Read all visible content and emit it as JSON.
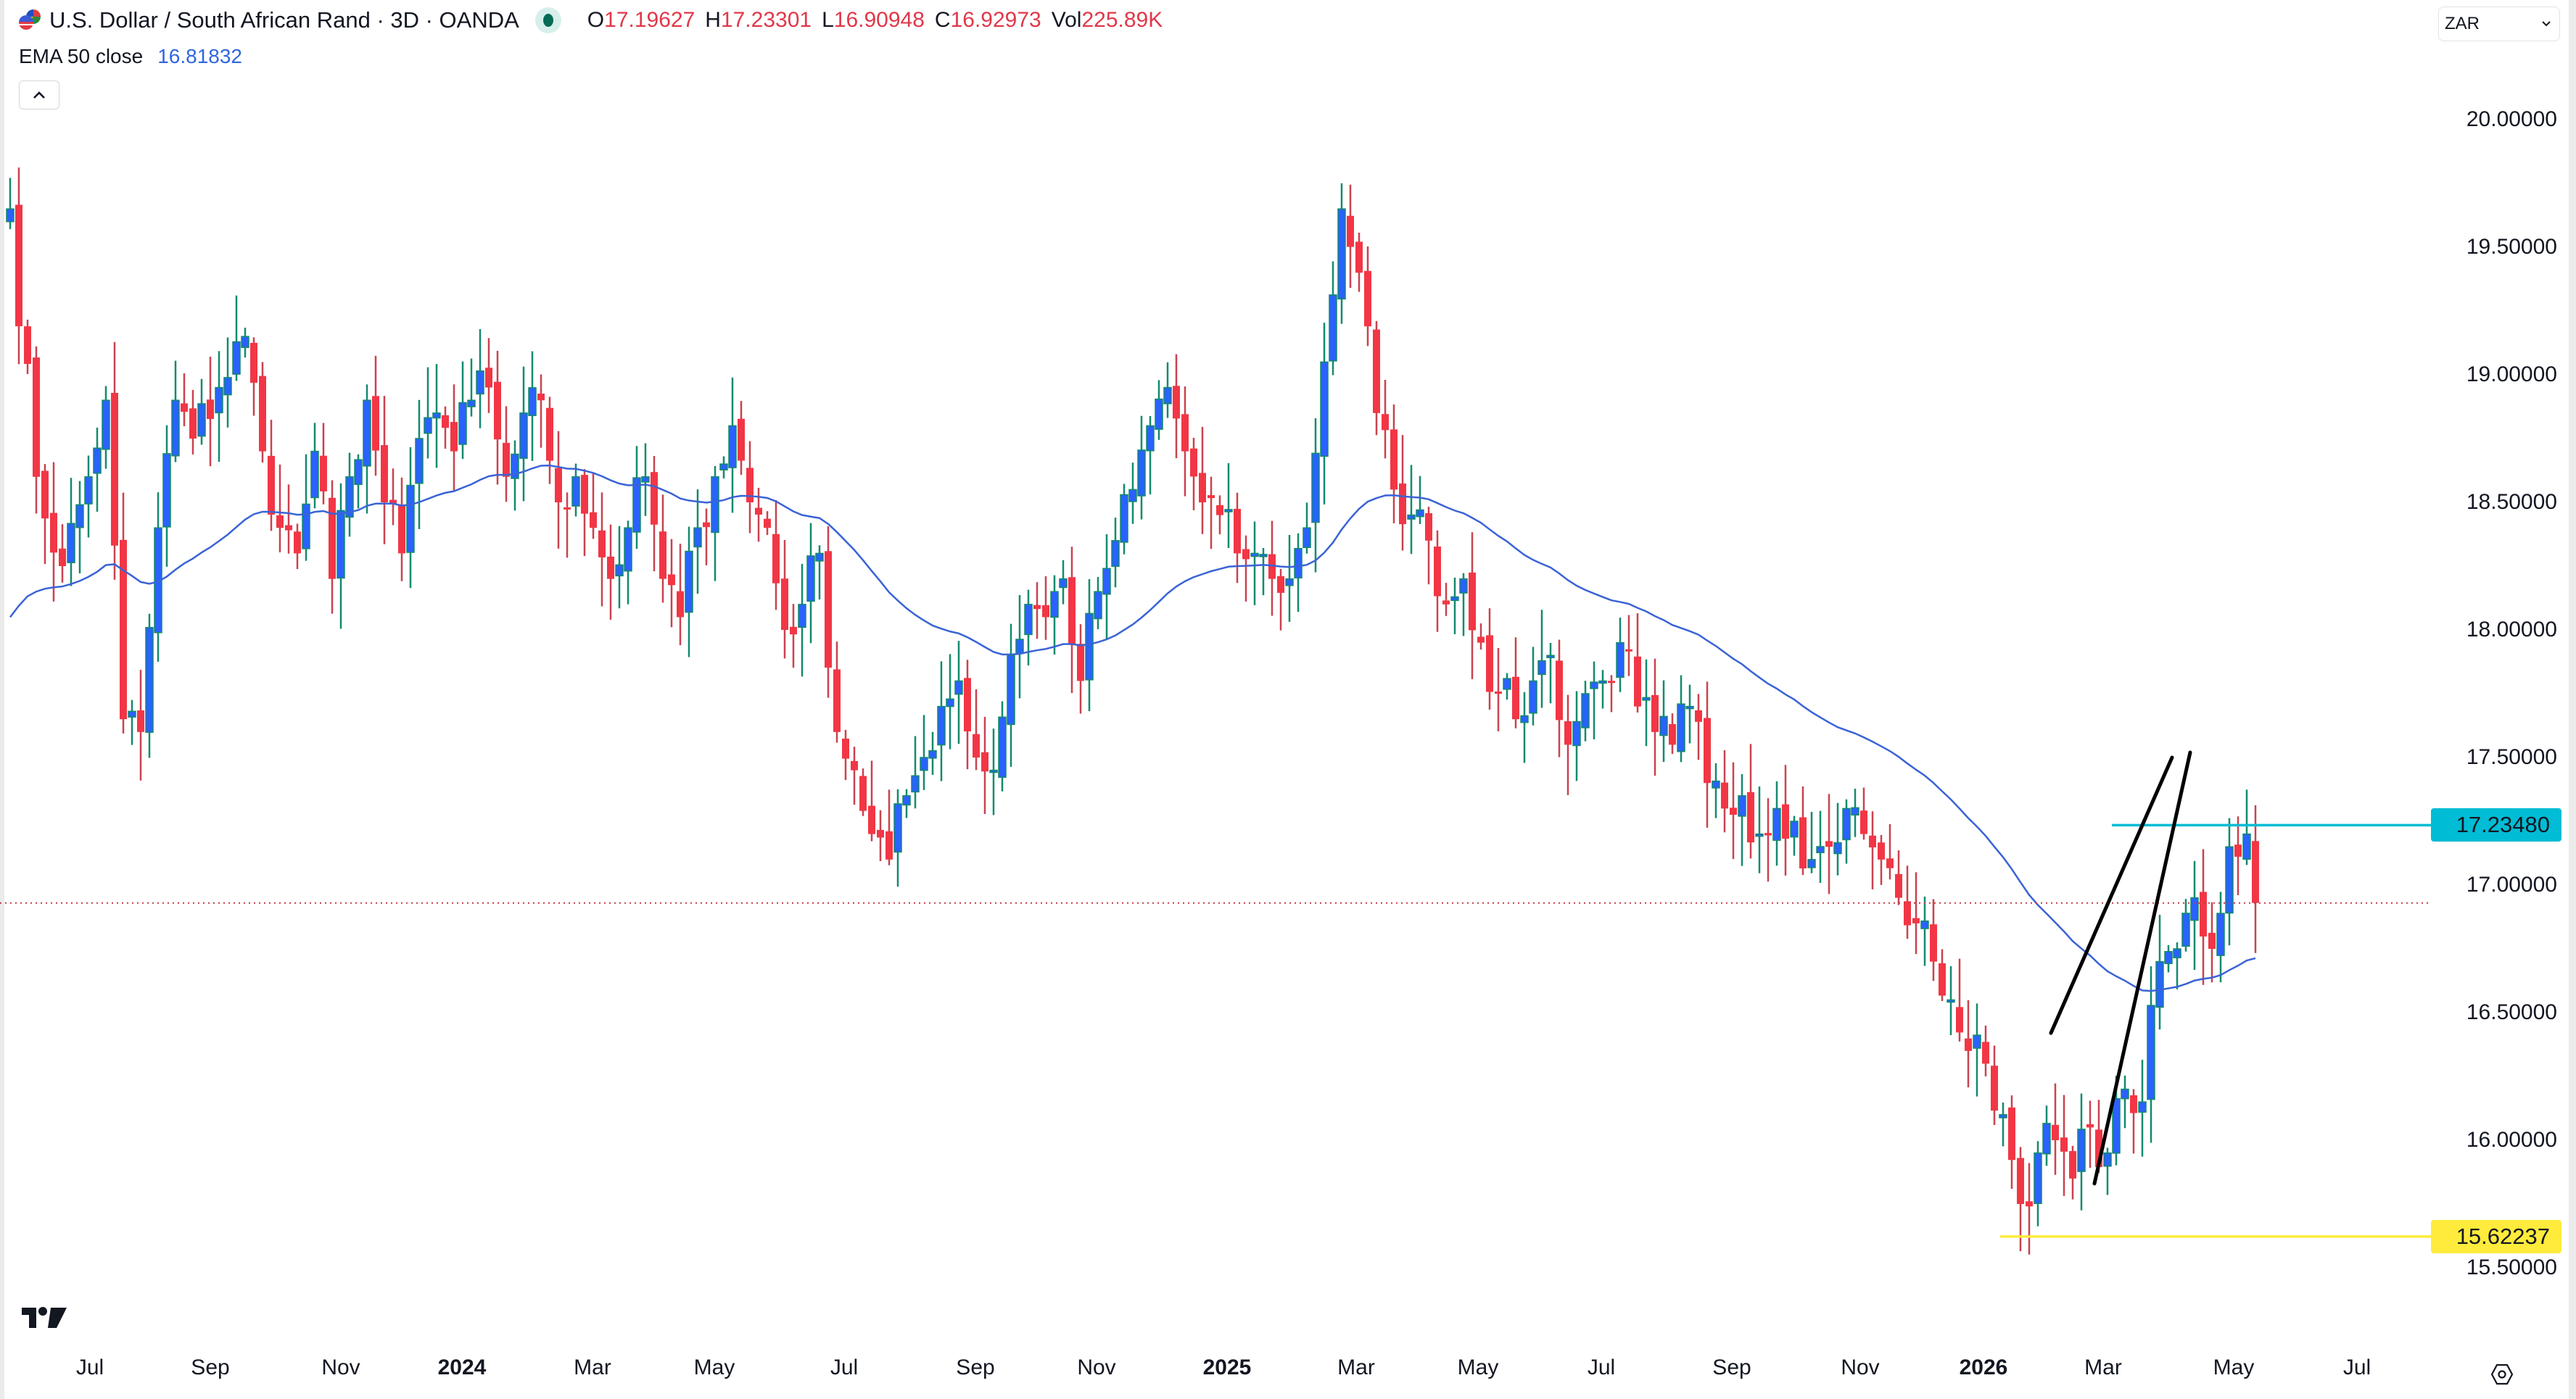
{
  "header": {
    "symbol_title": "U.S. Dollar / South African Rand · 3D · OANDA",
    "ohlc": [
      {
        "key": "O",
        "value": "17.19627"
      },
      {
        "key": "H",
        "value": "17.23301"
      },
      {
        "key": "L",
        "value": "16.90948"
      },
      {
        "key": "C",
        "value": "16.92973"
      },
      {
        "key": "Vol",
        "value": "225.89K"
      }
    ],
    "indicator_name": "EMA 50 close",
    "indicator_value": "16.81832",
    "currency": "ZAR"
  },
  "icons": {
    "flag": "usd-zar-flag-icon",
    "market_status": "market-open-dot-icon",
    "collapse": "chevron-up-icon",
    "dropdown": "chevron-down-icon",
    "logo": "tradingview-logo-icon",
    "settings": "settings-gear-icon"
  },
  "colors": {
    "up_body": "#2962ff",
    "up_wick": "#138a6e",
    "down_body": "#f23645",
    "down_wick": "#c9424f",
    "ema": "#3a63d6",
    "resistance_line": "#00bcd4",
    "support_line": "#ffeb3b",
    "current_price_line": "#c43a4a",
    "wedge_lines": "#000000"
  },
  "chart_data": {
    "type": "candlestick",
    "title": "U.S. Dollar / South African Rand · 3D · OANDA",
    "xlabel": "",
    "ylabel": "ZAR",
    "ylim": [
      15.2,
      20.3
    ],
    "y_ticks": [
      "20.00000",
      "19.50000",
      "19.00000",
      "18.50000",
      "18.00000",
      "17.50000",
      "17.00000",
      "16.50000",
      "16.00000",
      "15.50000"
    ],
    "x_ticks": [
      {
        "label": "Jul",
        "x": 124,
        "bold": false
      },
      {
        "label": "Sep",
        "x": 290,
        "bold": false
      },
      {
        "label": "Nov",
        "x": 470,
        "bold": false
      },
      {
        "label": "2024",
        "x": 637,
        "bold": true
      },
      {
        "label": "Mar",
        "x": 817,
        "bold": false
      },
      {
        "label": "May",
        "x": 985,
        "bold": false
      },
      {
        "label": "Jul",
        "x": 1164,
        "bold": false
      },
      {
        "label": "Sep",
        "x": 1345,
        "bold": false
      },
      {
        "label": "Nov",
        "x": 1512,
        "bold": false
      },
      {
        "label": "2025",
        "x": 1692,
        "bold": true
      },
      {
        "label": "Mar",
        "x": 1870,
        "bold": false
      },
      {
        "label": "May",
        "x": 2038,
        "bold": false
      },
      {
        "label": "Jul",
        "x": 2208,
        "bold": false
      },
      {
        "label": "Sep",
        "x": 2388,
        "bold": false
      },
      {
        "label": "Nov",
        "x": 2565,
        "bold": false
      },
      {
        "label": "2026",
        "x": 2735,
        "bold": true
      },
      {
        "label": "Mar",
        "x": 2900,
        "bold": false
      },
      {
        "label": "May",
        "x": 3080,
        "bold": false
      },
      {
        "label": "Jul",
        "x": 3250,
        "bold": false
      }
    ],
    "close_path": [
      [
        0,
        19.65
      ],
      [
        3,
        18.6
      ],
      [
        6,
        18.25
      ],
      [
        9,
        18.6
      ],
      [
        11,
        18.9
      ],
      [
        13,
        17.65
      ],
      [
        15,
        17.6
      ],
      [
        17,
        18.4
      ],
      [
        19,
        18.9
      ],
      [
        21,
        18.75
      ],
      [
        24,
        18.95
      ],
      [
        27,
        19.15
      ],
      [
        29,
        18.7
      ],
      [
        31,
        18.4
      ],
      [
        33,
        18.3
      ],
      [
        35,
        18.7
      ],
      [
        37,
        18.2
      ],
      [
        39,
        18.6
      ],
      [
        41,
        18.9
      ],
      [
        43,
        18.5
      ],
      [
        45,
        18.3
      ],
      [
        47,
        18.75
      ],
      [
        49,
        18.85
      ],
      [
        51,
        18.7
      ],
      [
        53,
        18.9
      ],
      [
        55,
        18.95
      ],
      [
        57,
        18.6
      ],
      [
        59,
        18.85
      ],
      [
        61,
        18.9
      ],
      [
        63,
        18.5
      ],
      [
        65,
        18.6
      ],
      [
        67,
        18.4
      ],
      [
        69,
        18.2
      ],
      [
        71,
        18.4
      ],
      [
        73,
        18.6
      ],
      [
        75,
        18.2
      ],
      [
        77,
        18.05
      ],
      [
        79,
        18.4
      ],
      [
        81,
        18.6
      ],
      [
        83,
        18.8
      ],
      [
        85,
        18.5
      ],
      [
        87,
        18.4
      ],
      [
        89,
        18.0
      ],
      [
        91,
        18.1
      ],
      [
        93,
        18.3
      ],
      [
        95,
        17.6
      ],
      [
        97,
        17.45
      ],
      [
        99,
        17.2
      ],
      [
        101,
        17.1
      ],
      [
        103,
        17.35
      ],
      [
        105,
        17.5
      ],
      [
        107,
        17.7
      ],
      [
        109,
        17.8
      ],
      [
        111,
        17.5
      ],
      [
        113,
        17.45
      ],
      [
        115,
        17.9
      ],
      [
        117,
        18.1
      ],
      [
        119,
        18.05
      ],
      [
        121,
        18.2
      ],
      [
        123,
        17.8
      ],
      [
        125,
        18.15
      ],
      [
        127,
        18.35
      ],
      [
        129,
        18.55
      ],
      [
        131,
        18.8
      ],
      [
        133,
        18.95
      ],
      [
        135,
        18.7
      ],
      [
        137,
        18.5
      ],
      [
        139,
        18.45
      ],
      [
        141,
        18.3
      ],
      [
        143,
        18.3
      ],
      [
        145,
        18.2
      ],
      [
        147,
        18.2
      ],
      [
        149,
        18.4
      ],
      [
        151,
        19.05
      ],
      [
        153,
        19.65
      ],
      [
        155,
        19.4
      ],
      [
        157,
        18.85
      ],
      [
        159,
        18.55
      ],
      [
        161,
        18.45
      ],
      [
        163,
        18.35
      ],
      [
        165,
        18.1
      ],
      [
        167,
        18.2
      ],
      [
        169,
        17.95
      ],
      [
        171,
        17.75
      ],
      [
        173,
        17.65
      ],
      [
        175,
        17.8
      ],
      [
        177,
        17.9
      ],
      [
        179,
        17.55
      ],
      [
        181,
        17.75
      ],
      [
        183,
        17.8
      ],
      [
        185,
        17.95
      ],
      [
        187,
        17.7
      ],
      [
        189,
        17.6
      ],
      [
        191,
        17.55
      ],
      [
        193,
        17.7
      ],
      [
        195,
        17.4
      ],
      [
        197,
        17.3
      ],
      [
        199,
        17.35
      ],
      [
        201,
        17.2
      ],
      [
        203,
        17.3
      ],
      [
        205,
        17.25
      ],
      [
        207,
        17.1
      ],
      [
        209,
        17.15
      ],
      [
        211,
        17.3
      ],
      [
        213,
        17.2
      ],
      [
        215,
        17.1
      ],
      [
        217,
        16.95
      ],
      [
        219,
        16.85
      ],
      [
        221,
        16.7
      ],
      [
        223,
        16.55
      ],
      [
        225,
        16.35
      ],
      [
        227,
        16.3
      ],
      [
        229,
        16.1
      ],
      [
        231,
        15.75
      ],
      [
        233,
        15.95
      ],
      [
        235,
        16.0
      ],
      [
        237,
        15.85
      ],
      [
        239,
        16.05
      ],
      [
        241,
        15.95
      ],
      [
        243,
        16.2
      ],
      [
        245,
        16.15
      ],
      [
        247,
        16.7
      ],
      [
        249,
        16.75
      ],
      [
        251,
        16.95
      ],
      [
        253,
        16.75
      ],
      [
        255,
        17.15
      ],
      [
        257,
        17.2
      ],
      [
        258,
        16.93
      ]
    ],
    "candle_spacing_px": 12,
    "candle_start_x": 14,
    "ema_period": 50,
    "annotations": [
      {
        "type": "hline",
        "label": "17.23480",
        "price": 17.2348,
        "x_start": 2912,
        "color": "#00bcd4"
      },
      {
        "type": "hline",
        "label": "15.62237",
        "price": 15.62237,
        "x_start": 2758,
        "color": "#ffeb3b"
      },
      {
        "type": "hline-dotted",
        "label": "current",
        "price": 16.92973,
        "color": "#c43a4a"
      },
      {
        "type": "trendline",
        "name": "wedge-upper",
        "p1": [
          2828,
          16.42
        ],
        "p2": [
          2995,
          17.5
        ]
      },
      {
        "type": "trendline",
        "name": "wedge-lower",
        "p1": [
          2888,
          15.83
        ],
        "p2": [
          3020,
          17.52
        ]
      }
    ],
    "legend": "EMA 50 close 16.81832"
  }
}
